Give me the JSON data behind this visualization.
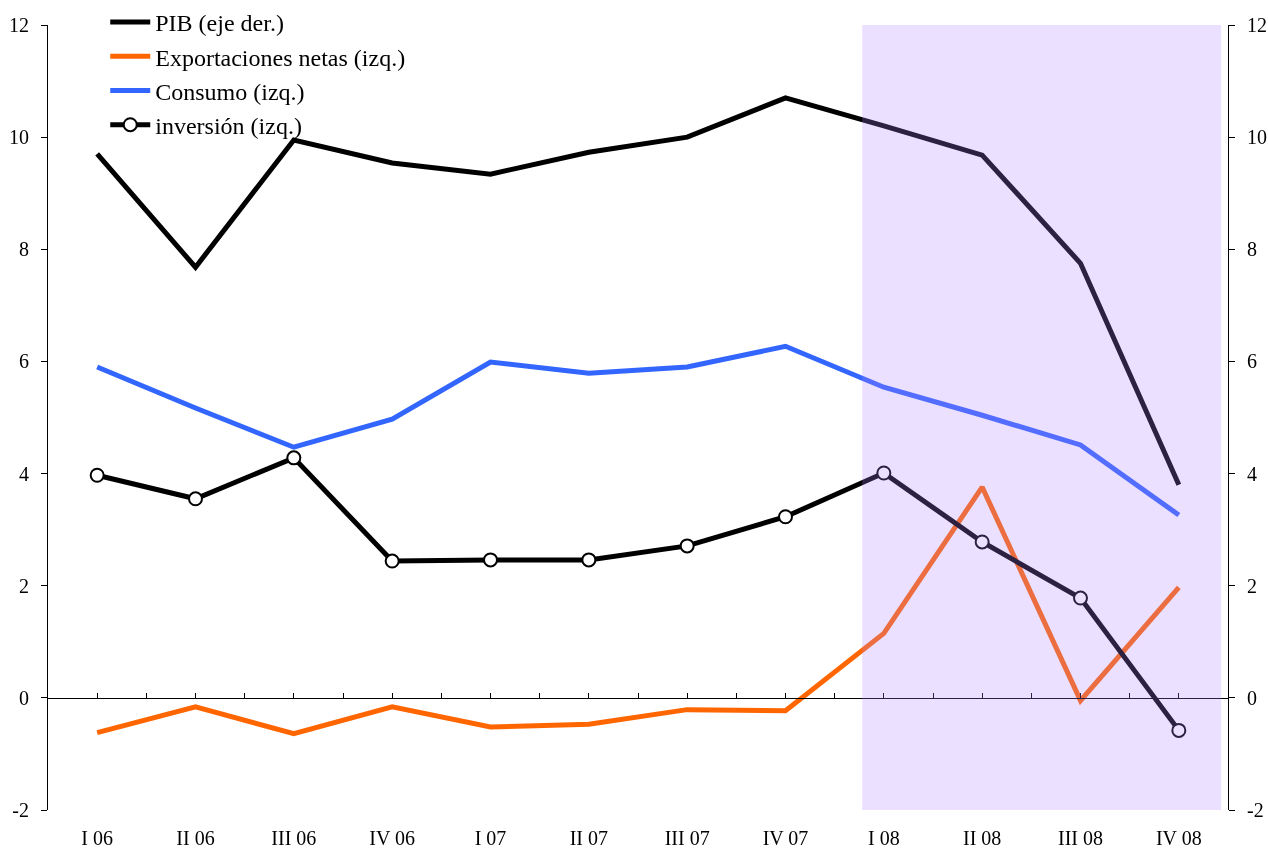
{
  "chart_data": {
    "type": "line",
    "categories": [
      "I 06",
      "II 06",
      "III 06",
      "IV 06",
      "I 07",
      "II 07",
      "III 07",
      "IV 07",
      "I 08",
      "II 08",
      "III 08",
      "IV 08"
    ],
    "ylim": [
      -2,
      12
    ],
    "yticks": [
      -2,
      0,
      2,
      4,
      6,
      8,
      10,
      12
    ],
    "y2lim": [
      -2,
      12
    ],
    "y2ticks": [
      -2,
      0,
      2,
      4,
      6,
      8,
      10,
      12
    ],
    "legend": "top left",
    "line_style": "solid",
    "series": [
      {
        "name": "PIB (eje der.)",
        "color": "#000000",
        "axis": "y2",
        "values": [
          9.7,
          7.68,
          9.95,
          9.54,
          9.34,
          9.73,
          10.0,
          10.7,
          10.2,
          9.68,
          7.75,
          3.8
        ]
      },
      {
        "name": "Exportaciones netas (izq.)",
        "color": "#ff6600",
        "values": [
          -0.62,
          -0.16,
          -0.64,
          -0.16,
          -0.52,
          -0.47,
          -0.21,
          -0.23,
          1.15,
          3.76,
          -0.05,
          1.97
        ]
      },
      {
        "name": "Consumo (izq.)",
        "color": "#3366ff",
        "values": [
          5.9,
          5.17,
          4.47,
          4.97,
          5.99,
          5.79,
          5.9,
          6.27,
          5.54,
          5.04,
          4.51,
          3.26
        ]
      },
      {
        "name": "inversión (izq.)",
        "color": "#000000",
        "marker": "circle",
        "values": [
          3.97,
          3.55,
          4.28,
          2.44,
          2.46,
          2.46,
          2.71,
          3.23,
          4.01,
          2.78,
          1.78,
          -0.58
        ]
      }
    ],
    "bands": [
      {
        "axis": "x",
        "from": "I 08",
        "to": "IV 08",
        "color": "#ebe0ff"
      }
    ]
  }
}
